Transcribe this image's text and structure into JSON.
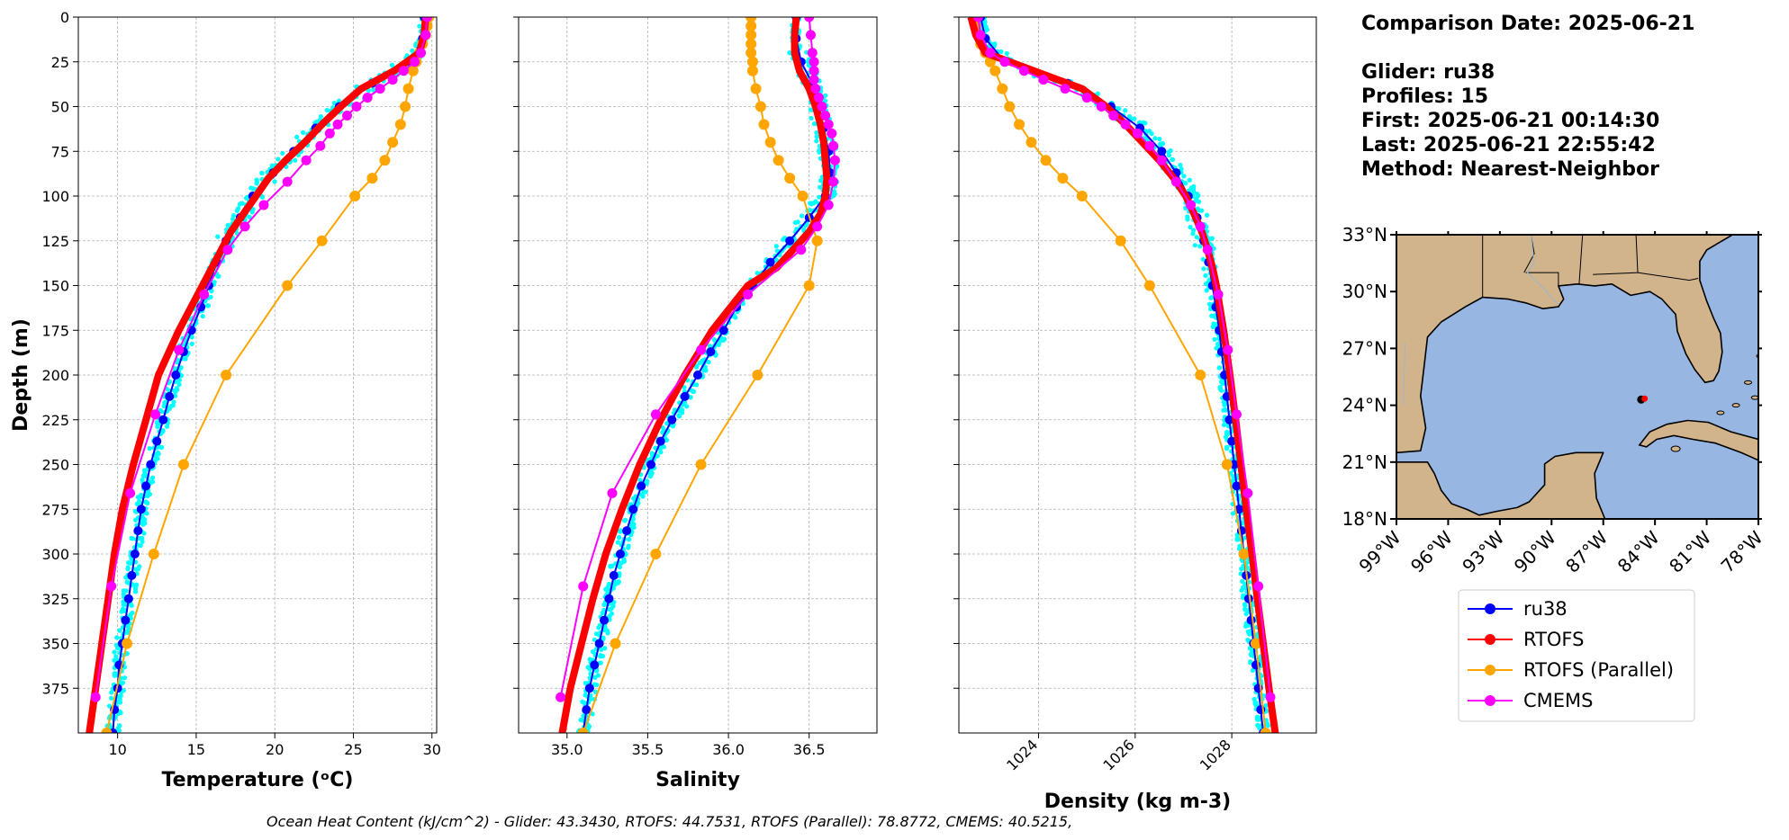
{
  "info": {
    "date_line": "Comparison Date: 2025-06-21",
    "glider_line": "Glider: ru38",
    "profiles_line": "Profiles: 15",
    "first_line": "First: 2025-06-21 00:14:30",
    "last_line": "Last: 2025-06-21 22:55:42",
    "method_line": "Method: Nearest-Neighbor"
  },
  "footer": {
    "ohc_text": "Ocean Heat Content (kJ/cm^2) - Glider: 43.3430,  RTOFS: 44.7531,  RTOFS (Parallel): 78.8772,  CMEMS: 40.5215,"
  },
  "legend": {
    "entries": [
      {
        "label": "ru38",
        "color": "#0000ff"
      },
      {
        "label": "RTOFS",
        "color": "#ff0000"
      },
      {
        "label": "RTOFS (Parallel)",
        "color": "#ffa500"
      },
      {
        "label": "CMEMS",
        "color": "#ff00ff"
      }
    ]
  },
  "colors": {
    "glider_scatter": "#00ffff",
    "ru38": "#0000ff",
    "rtofs": "#ff0000",
    "rtofs_parallel": "#ffa500",
    "cmems": "#ff00ff",
    "land": "#d2b48c",
    "ocean": "#97b6e1"
  },
  "chart_data": [
    {
      "type": "line",
      "xlabel": "Temperature (ᵒC)",
      "ylabel": "Depth (m)",
      "xlim": [
        7.5,
        30.3
      ],
      "ylim": [
        400,
        0
      ],
      "xticks": [
        10,
        15,
        20,
        25,
        30
      ],
      "yticks": [
        0,
        25,
        50,
        75,
        100,
        125,
        150,
        175,
        200,
        225,
        250,
        275,
        300,
        325,
        350,
        375
      ],
      "grid": true,
      "series": [
        {
          "name": "ru38",
          "depth": [
            0,
            12,
            25,
            37,
            50,
            62,
            75,
            87,
            100,
            112,
            125,
            137,
            150,
            162,
            175,
            187,
            200,
            212,
            225,
            237,
            250,
            262,
            275,
            287,
            300,
            312,
            325,
            337,
            350,
            362,
            375,
            387,
            400
          ],
          "values": [
            29.5,
            29.4,
            28.6,
            26.2,
            24.1,
            22.6,
            21.2,
            19.9,
            18.6,
            17.8,
            16.9,
            16.3,
            15.8,
            15.3,
            14.7,
            14.2,
            13.7,
            13.3,
            12.9,
            12.5,
            12.1,
            11.8,
            11.5,
            11.3,
            11.1,
            10.9,
            10.7,
            10.5,
            10.3,
            10.1,
            10.0,
            9.8,
            9.7
          ]
        },
        {
          "name": "RTOFS",
          "depth": [
            0,
            10,
            20,
            30,
            40,
            50,
            60,
            70,
            80,
            90,
            100,
            110,
            120,
            130,
            140,
            150,
            175,
            200,
            225,
            250,
            275,
            300,
            325,
            350,
            375,
            400
          ],
          "values": [
            29.6,
            29.5,
            29.2,
            27.6,
            25.5,
            24.2,
            23.0,
            21.9,
            20.7,
            19.6,
            18.8,
            18.0,
            17.2,
            16.6,
            16.0,
            15.4,
            13.9,
            12.6,
            11.8,
            11.0,
            10.3,
            9.8,
            9.4,
            9.0,
            8.6,
            8.2
          ]
        },
        {
          "name": "RTOFS (Parallel)",
          "depth": [
            0,
            5,
            10,
            15,
            20,
            25,
            30,
            40,
            50,
            60,
            70,
            80,
            90,
            100,
            125,
            150,
            200,
            250,
            300,
            350,
            400
          ],
          "values": [
            29.8,
            29.7,
            29.6,
            29.4,
            29.2,
            29.0,
            28.8,
            28.5,
            28.3,
            28.0,
            27.5,
            27.0,
            26.2,
            25.1,
            23.0,
            20.8,
            16.9,
            14.2,
            12.3,
            10.6,
            9.3
          ]
        },
        {
          "name": "CMEMS",
          "depth": [
            0,
            10,
            20,
            25,
            30,
            35,
            40,
            45,
            50,
            55,
            60,
            65,
            72,
            80,
            92,
            105,
            117,
            130,
            155,
            186,
            222,
            266,
            318,
            380
          ],
          "values": [
            29.7,
            29.6,
            29.3,
            28.9,
            28.2,
            27.5,
            26.7,
            25.9,
            25.2,
            24.6,
            24.0,
            23.5,
            22.9,
            22.0,
            20.8,
            19.3,
            18.1,
            17.0,
            15.5,
            13.9,
            12.4,
            10.8,
            9.6,
            8.6
          ]
        }
      ]
    },
    {
      "type": "line",
      "xlabel": "Salinity",
      "ylabel": "",
      "xlim": [
        34.7,
        36.92
      ],
      "ylim": [
        400,
        0
      ],
      "xticks": [
        35.0,
        35.5,
        36.0,
        36.5
      ],
      "yticks": [
        0,
        25,
        50,
        75,
        100,
        125,
        150,
        175,
        200,
        225,
        250,
        275,
        300,
        325,
        350,
        375
      ],
      "grid": true,
      "series": [
        {
          "name": "ru38",
          "depth": [
            0,
            12,
            25,
            37,
            50,
            62,
            75,
            87,
            100,
            112,
            125,
            137,
            150,
            162,
            175,
            187,
            200,
            212,
            225,
            237,
            250,
            262,
            275,
            287,
            300,
            312,
            325,
            337,
            350,
            362,
            375,
            387,
            400
          ],
          "values": [
            36.42,
            36.42,
            36.45,
            36.52,
            36.56,
            36.59,
            36.62,
            36.63,
            36.6,
            36.5,
            36.38,
            36.26,
            36.15,
            36.05,
            35.97,
            35.89,
            35.81,
            35.73,
            35.65,
            35.58,
            35.52,
            35.46,
            35.41,
            35.37,
            35.33,
            35.29,
            35.26,
            35.23,
            35.2,
            35.17,
            35.14,
            35.12,
            35.1
          ]
        },
        {
          "name": "RTOFS",
          "depth": [
            0,
            10,
            20,
            30,
            40,
            50,
            60,
            70,
            80,
            90,
            100,
            110,
            120,
            130,
            140,
            150,
            175,
            200,
            225,
            250,
            275,
            300,
            325,
            350,
            375,
            400
          ],
          "values": [
            36.42,
            36.41,
            36.41,
            36.44,
            36.5,
            36.54,
            36.57,
            36.59,
            36.6,
            36.61,
            36.6,
            36.57,
            36.5,
            36.4,
            36.3,
            36.12,
            35.9,
            35.73,
            35.58,
            35.45,
            35.34,
            35.24,
            35.16,
            35.09,
            35.02,
            34.97
          ]
        },
        {
          "name": "RTOFS (Parallel)",
          "depth": [
            0,
            5,
            10,
            15,
            20,
            25,
            30,
            40,
            50,
            60,
            70,
            80,
            90,
            100,
            125,
            150,
            200,
            250,
            300,
            350,
            400
          ],
          "values": [
            36.14,
            36.14,
            36.14,
            36.14,
            36.14,
            36.15,
            36.15,
            36.17,
            36.2,
            36.22,
            36.26,
            36.31,
            36.38,
            36.46,
            36.55,
            36.5,
            36.18,
            35.83,
            35.55,
            35.3,
            35.1
          ]
        },
        {
          "name": "CMEMS",
          "depth": [
            0,
            10,
            20,
            25,
            30,
            35,
            40,
            45,
            50,
            55,
            60,
            65,
            72,
            80,
            92,
            105,
            117,
            130,
            155,
            186,
            222,
            266,
            318,
            380
          ],
          "values": [
            36.5,
            36.51,
            36.52,
            36.53,
            36.53,
            36.53,
            36.54,
            36.56,
            36.58,
            36.6,
            36.62,
            36.64,
            36.65,
            36.66,
            36.65,
            36.62,
            36.55,
            36.45,
            36.12,
            35.83,
            35.55,
            35.28,
            35.1,
            34.96
          ]
        }
      ]
    },
    {
      "type": "line",
      "xlabel": "Density (kg m-3)",
      "ylabel": "",
      "xlim": [
        1022.35,
        1029.75
      ],
      "ylim": [
        400,
        0
      ],
      "xticks": [
        1024,
        1026,
        1028
      ],
      "yticks": [
        0,
        25,
        50,
        75,
        100,
        125,
        150,
        175,
        200,
        225,
        250,
        275,
        300,
        325,
        350,
        375
      ],
      "grid": true,
      "series": [
        {
          "name": "ru38",
          "depth": [
            0,
            12,
            25,
            37,
            50,
            62,
            75,
            87,
            100,
            112,
            125,
            137,
            150,
            162,
            175,
            187,
            200,
            212,
            225,
            237,
            250,
            262,
            275,
            287,
            300,
            312,
            325,
            337,
            350,
            362,
            375,
            387,
            400
          ],
          "values": [
            1022.8,
            1022.9,
            1023.3,
            1024.6,
            1025.5,
            1026.1,
            1026.55,
            1026.85,
            1027.1,
            1027.28,
            1027.42,
            1027.52,
            1027.6,
            1027.67,
            1027.74,
            1027.79,
            1027.85,
            1027.9,
            1027.95,
            1028.0,
            1028.05,
            1028.1,
            1028.15,
            1028.2,
            1028.25,
            1028.3,
            1028.35,
            1028.4,
            1028.45,
            1028.5,
            1028.55,
            1028.6,
            1028.65
          ]
        },
        {
          "name": "RTOFS",
          "depth": [
            0,
            10,
            20,
            30,
            40,
            50,
            60,
            70,
            80,
            90,
            100,
            110,
            120,
            130,
            140,
            150,
            175,
            200,
            225,
            250,
            275,
            300,
            325,
            350,
            375,
            400
          ],
          "values": [
            1022.6,
            1022.7,
            1022.9,
            1023.9,
            1024.9,
            1025.4,
            1025.8,
            1026.15,
            1026.5,
            1026.8,
            1027.05,
            1027.22,
            1027.38,
            1027.5,
            1027.6,
            1027.68,
            1027.83,
            1027.96,
            1028.08,
            1028.19,
            1028.3,
            1028.42,
            1028.53,
            1028.65,
            1028.77,
            1028.9
          ]
        },
        {
          "name": "RTOFS (Parallel)",
          "depth": [
            0,
            5,
            10,
            15,
            20,
            25,
            30,
            40,
            50,
            60,
            70,
            80,
            90,
            100,
            125,
            150,
            200,
            250,
            300,
            350,
            400
          ],
          "values": [
            1022.7,
            1022.7,
            1022.75,
            1022.8,
            1022.9,
            1023.0,
            1023.1,
            1023.25,
            1023.4,
            1023.6,
            1023.85,
            1024.15,
            1024.5,
            1024.9,
            1025.7,
            1026.3,
            1027.35,
            1027.9,
            1028.25,
            1028.5,
            1028.7
          ]
        },
        {
          "name": "CMEMS",
          "depth": [
            0,
            10,
            20,
            25,
            30,
            35,
            40,
            45,
            50,
            55,
            60,
            65,
            72,
            80,
            92,
            105,
            117,
            130,
            155,
            186,
            222,
            266,
            318,
            380
          ],
          "values": [
            1022.75,
            1022.8,
            1023.0,
            1023.3,
            1023.7,
            1024.1,
            1024.55,
            1025.0,
            1025.3,
            1025.55,
            1025.8,
            1026.05,
            1026.3,
            1026.55,
            1026.85,
            1027.15,
            1027.35,
            1027.5,
            1027.72,
            1027.92,
            1028.1,
            1028.33,
            1028.55,
            1028.8
          ]
        }
      ]
    }
  ],
  "map": {
    "xlim": [
      -99,
      -78
    ],
    "ylim": [
      18,
      33
    ],
    "lon_ticks": [
      "99°W",
      "96°W",
      "93°W",
      "90°W",
      "87°W",
      "84°W",
      "81°W",
      "78°W"
    ],
    "lat_ticks": [
      "33°N",
      "30°N",
      "27°N",
      "24°N",
      "21°N",
      "18°N"
    ],
    "glider_position": {
      "lon": -84.8,
      "lat": 24.3
    },
    "model_position": {
      "lon": -84.6,
      "lat": 24.35
    }
  }
}
